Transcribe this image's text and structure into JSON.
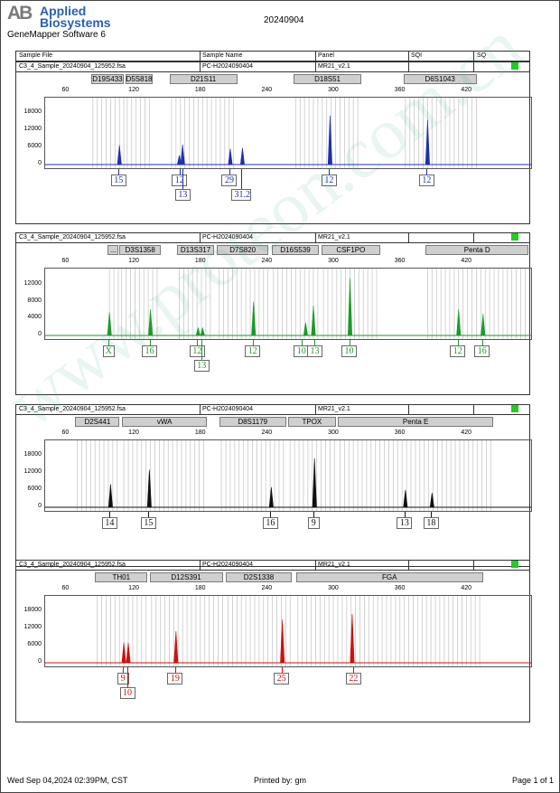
{
  "header": {
    "logo_mark": "AB",
    "logo_line1": "Applied",
    "logo_line2": "Biosystems",
    "software": "GeneMapper Software 6",
    "date": "20240904"
  },
  "columns": [
    "Sample File",
    "Sample Name",
    "Panel",
    "SQI",
    "SQ"
  ],
  "x_ticks": [
    60,
    120,
    180,
    240,
    300,
    360,
    420
  ],
  "panels": [
    {
      "sample_file": "C3_4_Sample_20240904_125952.fsa",
      "sample_name": "PC-H2024090404",
      "panel": "MR21_v2.1",
      "color": "#1f2fb0",
      "y_ticks": [
        0,
        6000,
        12000,
        18000
      ],
      "y_max": 22000,
      "loci": [
        {
          "name": "D19S433",
          "start": 82,
          "end": 112
        },
        {
          "name": "D5S818",
          "start": 113,
          "end": 138
        },
        {
          "name": "D21S11",
          "start": 153,
          "end": 214
        },
        {
          "name": "D18S51",
          "start": 265,
          "end": 326
        },
        {
          "name": "D6S1043",
          "start": 364,
          "end": 430
        }
      ],
      "peaks": [
        {
          "size": 107,
          "height": 6800
        },
        {
          "size": 161,
          "height": 3200
        },
        {
          "size": 164,
          "height": 7000
        },
        {
          "size": 207,
          "height": 5500
        },
        {
          "size": 218,
          "height": 5800
        },
        {
          "size": 297,
          "height": 17000
        },
        {
          "size": 385,
          "height": 15500
        }
      ],
      "alleles": [
        {
          "label": "15",
          "size": 107,
          "row": 0
        },
        {
          "label": "12",
          "size": 162,
          "row": 0
        },
        {
          "label": "13",
          "size": 165,
          "row": 1
        },
        {
          "label": "29",
          "size": 207,
          "row": 0
        },
        {
          "label": "31.2",
          "size": 218,
          "row": 1
        },
        {
          "label": "12",
          "size": 297,
          "row": 0
        },
        {
          "label": "12",
          "size": 385,
          "row": 0
        }
      ]
    },
    {
      "sample_file": "C3_4_Sample_20240904_125952.fsa",
      "sample_name": "PC-H2024090404",
      "panel": "MR21_v2.1",
      "color": "#1a9a2a",
      "y_ticks": [
        0,
        4000,
        8000,
        12000
      ],
      "y_max": 15000,
      "loci": [
        {
          "name": "...",
          "start": 97,
          "end": 107
        },
        {
          "name": "D3S1358",
          "start": 108,
          "end": 145
        },
        {
          "name": "D13S317",
          "start": 160,
          "end": 193
        },
        {
          "name": "D7S820",
          "start": 196,
          "end": 242
        },
        {
          "name": "D16S539",
          "start": 245,
          "end": 288
        },
        {
          "name": "CSF1PO",
          "start": 290,
          "end": 343
        },
        {
          "name": "Penta D",
          "start": 384,
          "end": 477
        }
      ],
      "peaks": [
        {
          "size": 98,
          "height": 5500
        },
        {
          "size": 135,
          "height": 6200
        },
        {
          "size": 178,
          "height": 1800
        },
        {
          "size": 182,
          "height": 1800
        },
        {
          "size": 228,
          "height": 8000
        },
        {
          "size": 275,
          "height": 3000
        },
        {
          "size": 282,
          "height": 7100
        },
        {
          "size": 315,
          "height": 13600
        },
        {
          "size": 413,
          "height": 6200
        },
        {
          "size": 435,
          "height": 5100
        }
      ],
      "alleles": [
        {
          "label": "X",
          "size": 98,
          "row": 0
        },
        {
          "label": "16",
          "size": 135,
          "row": 0
        },
        {
          "label": "12",
          "size": 178,
          "row": 0
        },
        {
          "label": "13",
          "size": 182,
          "row": 1
        },
        {
          "label": "12",
          "size": 228,
          "row": 0
        },
        {
          "label": "10",
          "size": 272,
          "row": 0
        },
        {
          "label": "13",
          "size": 284,
          "row": 0
        },
        {
          "label": "10",
          "size": 315,
          "row": 0
        },
        {
          "label": "12",
          "size": 413,
          "row": 0
        },
        {
          "label": "16",
          "size": 435,
          "row": 0
        }
      ]
    },
    {
      "sample_file": "C3_4_Sample_20240904_125952.fsa",
      "sample_name": "PC-H2024090404",
      "panel": "MR21_v2.1",
      "color": "#111111",
      "y_ticks": [
        0,
        6000,
        12000,
        18000
      ],
      "y_max": 22000,
      "loci": [
        {
          "name": "D2S441",
          "start": 68,
          "end": 108
        },
        {
          "name": "vWA",
          "start": 110,
          "end": 187
        },
        {
          "name": "D8S1179",
          "start": 198,
          "end": 258
        },
        {
          "name": "TPOX",
          "start": 260,
          "end": 303
        },
        {
          "name": "Penta E",
          "start": 305,
          "end": 445
        }
      ],
      "peaks": [
        {
          "size": 99,
          "height": 8000
        },
        {
          "size": 134,
          "height": 13000
        },
        {
          "size": 244,
          "height": 7000
        },
        {
          "size": 283,
          "height": 17000
        },
        {
          "size": 365,
          "height": 6000
        },
        {
          "size": 389,
          "height": 5000
        }
      ],
      "alleles": [
        {
          "label": "14",
          "size": 99,
          "row": 0
        },
        {
          "label": "15",
          "size": 134,
          "row": 0
        },
        {
          "label": "16",
          "size": 244,
          "row": 0
        },
        {
          "label": "9",
          "size": 283,
          "row": 0
        },
        {
          "label": "13",
          "size": 365,
          "row": 0
        },
        {
          "label": "18",
          "size": 389,
          "row": 0
        }
      ]
    },
    {
      "sample_file": "C3_4_Sample_20240904_125952.fsa",
      "sample_name": "PC-H2024090404",
      "panel": "MR21_v2.1",
      "color": "#cc1111",
      "y_ticks": [
        0,
        6000,
        12000,
        18000
      ],
      "y_max": 22000,
      "loci": [
        {
          "name": "TH01",
          "start": 86,
          "end": 133
        },
        {
          "name": "D12S391",
          "start": 135,
          "end": 201
        },
        {
          "name": "D2S1338",
          "start": 204,
          "end": 263
        },
        {
          "name": "FGA",
          "start": 267,
          "end": 436
        }
      ],
      "peaks": [
        {
          "size": 111,
          "height": 7000
        },
        {
          "size": 115,
          "height": 7000
        },
        {
          "size": 158,
          "height": 11000
        },
        {
          "size": 254,
          "height": 15000
        },
        {
          "size": 317,
          "height": 17000
        }
      ],
      "alleles": [
        {
          "label": "9",
          "size": 111,
          "row": 0
        },
        {
          "label": "10",
          "size": 115,
          "row": 1
        },
        {
          "label": "19",
          "size": 158,
          "row": 0
        },
        {
          "label": "25",
          "size": 254,
          "row": 0
        },
        {
          "label": "22",
          "size": 319,
          "row": 0
        }
      ]
    }
  ],
  "watermark": "www.proteon.com.cn",
  "footer": {
    "timestamp": "Wed Sep 04,2024 02:39PM, CST",
    "printed_by": "Printed by: gm",
    "page": "Page 1 of 1"
  }
}
